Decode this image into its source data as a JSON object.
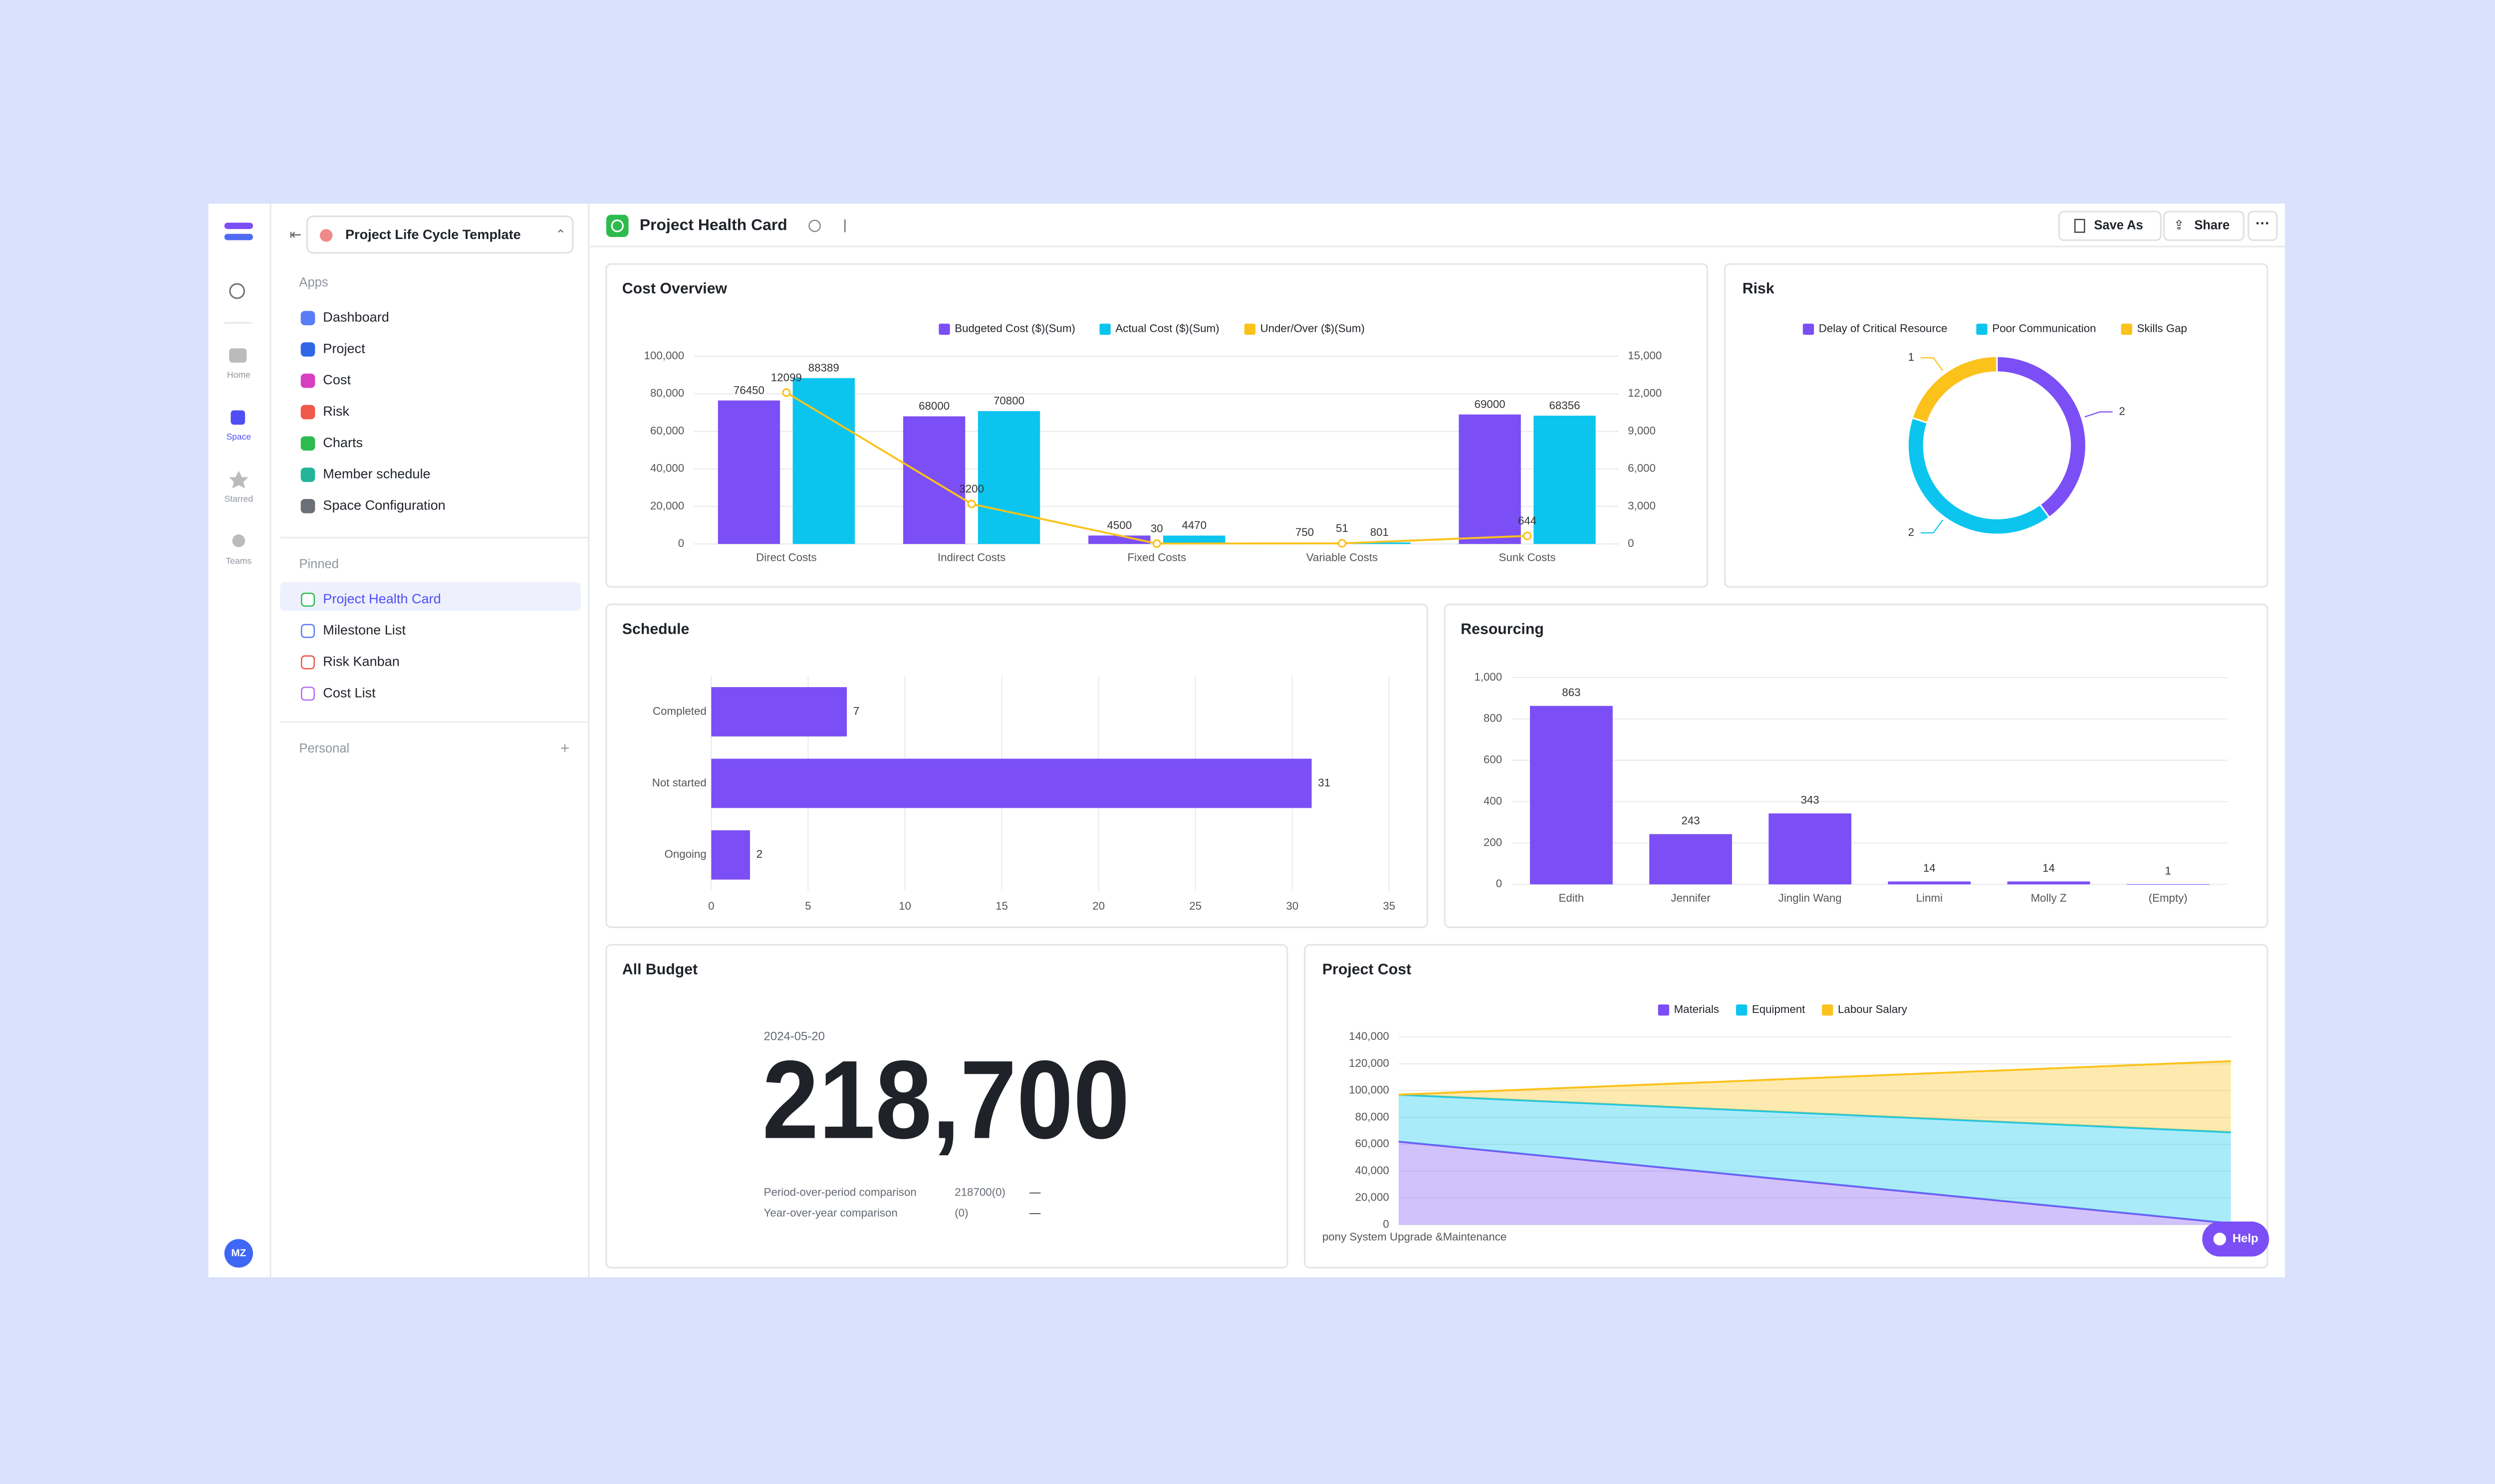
{
  "rail": {
    "items": [
      "Home",
      "Space",
      "Starred",
      "Teams"
    ],
    "avatar": "MZ"
  },
  "sidebar": {
    "workspace": "Project Life Cycle Template",
    "sections": [
      {
        "title": "Apps",
        "items": [
          "Dashboard",
          "Project",
          "Cost",
          "Risk",
          "Charts",
          "Member schedule",
          "Space Configuration"
        ]
      },
      {
        "title": "Pinned",
        "items": [
          "Project Health Card",
          "Milestone List",
          "Risk Kanban",
          "Cost List"
        ]
      },
      {
        "title": "Personal"
      }
    ]
  },
  "header": {
    "title": "Project Health Card",
    "actions": [
      "Save As",
      "Share"
    ]
  },
  "help": "Help",
  "metric": {
    "title": "All Budget",
    "date": "2024-05-20",
    "value": "218,700",
    "comparisons": [
      {
        "label": "Period-over-period comparison",
        "value": "218700(0)",
        "change": "—"
      },
      {
        "label": "Year-over-year comparison",
        "value": "(0)",
        "change": "—"
      }
    ]
  },
  "chart_data": [
    {
      "type": "bar",
      "title": "Cost Overview",
      "categories": [
        "Direct Costs",
        "Indirect Costs",
        "Fixed Costs",
        "Variable Costs",
        "Sunk Costs"
      ],
      "series": [
        {
          "name": "Budgeted Cost ($)(Sum)",
          "color": "#7b4ff5",
          "values": [
            76450,
            68000,
            4500,
            750,
            69000
          ]
        },
        {
          "name": "Actual Cost ($)(Sum)",
          "color": "#0bc5ef",
          "values": [
            88389,
            70800,
            4470,
            801,
            68356
          ]
        },
        {
          "name": "Under/Over ($)(Sum)",
          "color": "#fbc21b",
          "type": "line",
          "axis": "y2",
          "values": [
            12099,
            3200,
            30,
            51,
            644
          ]
        }
      ],
      "ylim": [
        0,
        100000
      ],
      "yticks": [
        0,
        {
          "value": 20000,
          "label": "20,000"
        },
        {
          "value": 40000,
          "label": "40,000"
        },
        {
          "value": 60000,
          "label": "60,000"
        },
        {
          "value": 80000,
          "label": "80,000"
        },
        {
          "value": 100000,
          "label": "100,000"
        }
      ],
      "y2lim": [
        0,
        15000
      ],
      "y2ticks": [
        0,
        {
          "value": 3000,
          "label": "3,000"
        },
        {
          "value": 6000,
          "label": "6,000"
        },
        {
          "value": 9000,
          "label": "9,000"
        },
        {
          "value": 12000,
          "label": "12,000"
        },
        {
          "value": 15000,
          "label": "15,000"
        }
      ],
      "grid": true,
      "legend": "top"
    },
    {
      "type": "pie",
      "donut": true,
      "title": "Risk",
      "categories": [
        "Delay of Critical Resource",
        "Poor Communication",
        "Skills Gap"
      ],
      "values": [
        2,
        2,
        1
      ],
      "colors": [
        "#7b4ff5",
        "#0bc5ef",
        "#fbc21b"
      ],
      "legend": "top"
    },
    {
      "type": "bar",
      "orientation": "horizontal",
      "title": "Schedule",
      "categories": [
        "Completed",
        "Not started",
        "Ongoing"
      ],
      "values": [
        7,
        31,
        2
      ],
      "color": "#7b4ff5",
      "xlim": [
        0,
        35
      ],
      "xticks": [
        0,
        5,
        10,
        15,
        20,
        25,
        30,
        35
      ],
      "grid": true
    },
    {
      "type": "bar",
      "title": "Resourcing",
      "categories": [
        "Edith",
        "Jennifer",
        "Jinglin Wang",
        "Linmi",
        "Molly Z",
        "(Empty)"
      ],
      "values": [
        863,
        243,
        343,
        14,
        14,
        1
      ],
      "color": "#7b4ff5",
      "ylim": [
        0,
        1000
      ],
      "yticks": [
        0,
        200,
        400,
        600,
        800,
        {
          "value": 1000,
          "label": "1,000"
        }
      ],
      "grid": true
    },
    {
      "type": "area",
      "stacked": true,
      "title": "Project Cost",
      "categories": [
        "pony System Upgrade &Maintenance",
        null
      ],
      "series": [
        {
          "name": "Materials",
          "color": "#7b4ff5",
          "values": [
            62000,
            1000
          ]
        },
        {
          "name": "Equipment",
          "color": "#0bc5ef",
          "values": [
            35000,
            68000
          ]
        },
        {
          "name": "Labour Salary",
          "color": "#fbc21b",
          "values": [
            0,
            53000
          ]
        }
      ],
      "ylim": [
        0,
        140000
      ],
      "yticks": [
        0,
        {
          "value": 20000,
          "label": "20,000"
        },
        {
          "value": 40000,
          "label": "40,000"
        },
        {
          "value": 60000,
          "label": "60,000"
        },
        {
          "value": 80000,
          "label": "80,000"
        },
        {
          "value": 100000,
          "label": "100,000"
        },
        {
          "value": 120000,
          "label": "120,000"
        },
        {
          "value": 140000,
          "label": "140,000"
        }
      ],
      "grid": true,
      "legend": "top"
    }
  ]
}
